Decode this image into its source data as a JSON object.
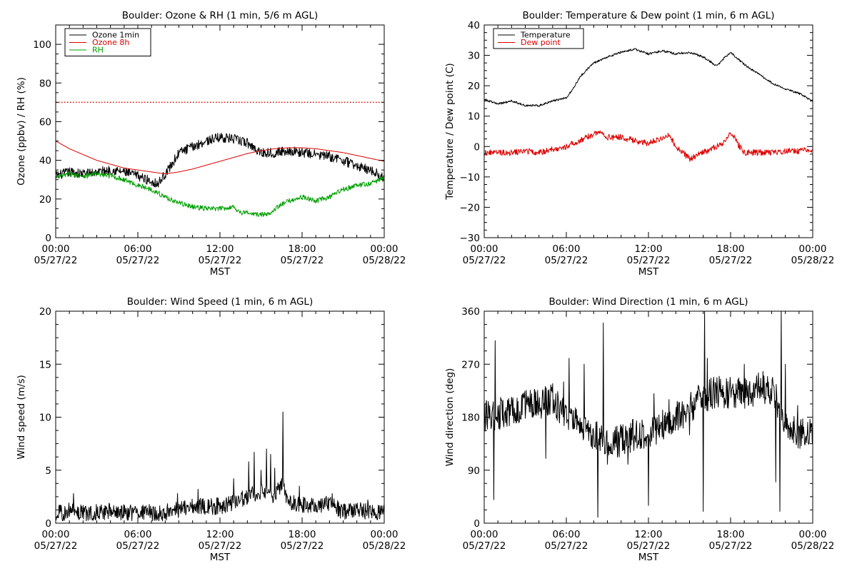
{
  "chart_data": [
    {
      "id": "ozone_rh",
      "type": "line",
      "title": "Boulder: Ozone & RH (1 min, 5/6 m AGL)",
      "xlabel": "MST",
      "ylabel": "Ozone (ppbv) / RH (%)",
      "xlim": [
        0,
        24
      ],
      "ylim": [
        0,
        110
      ],
      "yticks": [
        0,
        20,
        40,
        60,
        80,
        100
      ],
      "ytick_labels": [
        "0",
        "20",
        "40",
        "60",
        "80",
        "100"
      ],
      "xtick_labels": [
        [
          "00:00",
          "05/27/22"
        ],
        [
          "06:00",
          "05/27/22"
        ],
        [
          "12:00",
          "05/27/22"
        ],
        [
          "18:00",
          "05/27/22"
        ],
        [
          "00:00",
          "05/28/22"
        ]
      ],
      "legend": {
        "position": "top-left",
        "boxed": true
      },
      "reference_line": {
        "value": 70,
        "color": "#dd0000",
        "style": "dotted"
      },
      "series": [
        {
          "name": "Ozone 1min",
          "color": "#000000",
          "noise": 2.5,
          "x": [
            0,
            1,
            2,
            3,
            4,
            5,
            6,
            7,
            7.5,
            8,
            8.5,
            9,
            10,
            11,
            12,
            13,
            14,
            15,
            16,
            17,
            18,
            19,
            20,
            21,
            22,
            23,
            24
          ],
          "y": [
            32,
            34,
            33,
            34,
            35,
            34,
            32,
            29,
            28,
            33,
            38,
            44,
            47,
            50,
            52,
            51,
            49,
            44,
            44,
            45,
            44,
            43,
            42,
            40,
            37,
            35,
            31
          ]
        },
        {
          "name": "Ozone 8h",
          "color": "#dd0000",
          "noise": 0,
          "x": [
            0,
            1,
            2,
            3,
            4,
            5,
            6,
            7,
            8,
            9,
            10,
            11,
            12,
            13,
            14,
            15,
            16,
            17,
            18,
            19,
            20,
            21,
            22,
            23,
            24
          ],
          "y": [
            50,
            46,
            43,
            40,
            38,
            36,
            35,
            34,
            33,
            34,
            35.5,
            37.5,
            39.5,
            41.5,
            43.5,
            45,
            46,
            46.5,
            46.5,
            46,
            45,
            44,
            42.5,
            41,
            39.5
          ]
        },
        {
          "name": "RH",
          "color": "#00a000",
          "noise": 1.3,
          "x": [
            0,
            1,
            2,
            3,
            4,
            5,
            6,
            7,
            8,
            9,
            10,
            11,
            12,
            13,
            13.5,
            14,
            14.5,
            15,
            15.5,
            16,
            17,
            18,
            19,
            20,
            21,
            22,
            23,
            24
          ],
          "y": [
            31,
            33,
            32,
            33,
            32,
            30,
            27,
            25,
            21,
            18,
            16,
            15,
            15,
            16,
            13,
            13,
            12,
            12,
            12,
            15,
            19,
            21,
            19,
            21,
            25,
            27,
            28,
            31
          ]
        }
      ]
    },
    {
      "id": "temp_dew",
      "type": "line",
      "title": "Boulder: Temperature & Dew point (1 min, 6 m AGL)",
      "xlabel": "MST",
      "ylabel": "Temperature / Dew point (C)",
      "xlim": [
        0,
        24
      ],
      "ylim": [
        -30,
        40
      ],
      "yticks": [
        -30,
        -20,
        -10,
        0,
        10,
        20,
        30,
        40
      ],
      "ytick_labels": [
        "−30",
        "−20",
        "−10",
        "0",
        "10",
        "20",
        "30",
        "40"
      ],
      "xtick_labels": [
        [
          "00:00",
          "05/27/22"
        ],
        [
          "06:00",
          "05/27/22"
        ],
        [
          "12:00",
          "05/27/22"
        ],
        [
          "18:00",
          "05/27/22"
        ],
        [
          "00:00",
          "05/28/22"
        ]
      ],
      "legend": {
        "position": "top-left",
        "boxed": true
      },
      "series": [
        {
          "name": "Temperature",
          "color": "#000000",
          "noise": 0.35,
          "x": [
            0,
            1,
            2,
            3,
            4,
            5,
            6,
            6.5,
            7,
            8,
            9,
            10,
            11,
            12,
            13,
            14,
            15,
            16,
            17,
            17.5,
            18,
            19,
            20,
            21,
            22,
            23,
            24
          ],
          "y": [
            15.5,
            14,
            15,
            13.5,
            13.5,
            15,
            16,
            19,
            23,
            27.5,
            29.5,
            31,
            32,
            30.5,
            31.5,
            30.5,
            31,
            29.5,
            26.5,
            29,
            31,
            27,
            24,
            21,
            19,
            17.5,
            15
          ]
        },
        {
          "name": "Dew point",
          "color": "#dd0000",
          "noise": 1.0,
          "x": [
            0,
            1,
            2,
            3,
            4,
            5,
            6,
            7,
            8,
            8.5,
            9,
            10,
            11,
            12,
            13,
            13.5,
            14,
            14.5,
            15,
            16,
            17,
            17.5,
            18,
            18.5,
            19,
            20,
            21,
            22,
            23,
            24
          ],
          "y": [
            -2,
            -2,
            -2,
            -1.5,
            -2,
            -1,
            0,
            2,
            4,
            5,
            3,
            3,
            2,
            1,
            3,
            4,
            0,
            -2,
            -4,
            -2,
            0,
            1,
            5,
            1,
            -2,
            -2,
            -2,
            -1.5,
            -1.5,
            -1
          ]
        }
      ]
    },
    {
      "id": "wind_speed",
      "type": "line",
      "title": "Boulder: Wind Speed (1 min, 6 m AGL)",
      "xlabel": "MST",
      "ylabel": "Wind speed (m/s)",
      "xlim": [
        0,
        24
      ],
      "ylim": [
        0,
        20
      ],
      "yticks": [
        0,
        5,
        10,
        15,
        20
      ],
      "ytick_labels": [
        "0",
        "5",
        "10",
        "15",
        "20"
      ],
      "xtick_labels": [
        [
          "00:00",
          "05/27/22"
        ],
        [
          "06:00",
          "05/27/22"
        ],
        [
          "12:00",
          "05/27/22"
        ],
        [
          "18:00",
          "05/27/22"
        ],
        [
          "00:00",
          "05/28/22"
        ]
      ],
      "series": [
        {
          "name": "",
          "color": "#000000",
          "noise": 0.8,
          "min": 0,
          "x": [
            0,
            1,
            2,
            3,
            4,
            5,
            6,
            7,
            8,
            9,
            10,
            11,
            12,
            13,
            14,
            15,
            16,
            16.5,
            17,
            18,
            19,
            20,
            21,
            22,
            23,
            24
          ],
          "y": [
            0.8,
            1.2,
            1.0,
            1.0,
            1.1,
            1.0,
            0.9,
            1.0,
            1.0,
            1.3,
            1.5,
            1.6,
            1.6,
            2.0,
            2.5,
            3.0,
            2.2,
            4.0,
            2.0,
            1.8,
            1.6,
            1.8,
            1.1,
            1.2,
            1.0,
            1.0
          ],
          "spikes": [
            [
              1.3,
              2.8
            ],
            [
              8.9,
              2.8
            ],
            [
              10.4,
              3.2
            ],
            [
              13,
              4.2
            ],
            [
              14.1,
              5.8
            ],
            [
              14.5,
              6.7
            ],
            [
              15.0,
              5.0
            ],
            [
              15.4,
              7.0
            ],
            [
              15.7,
              6.5
            ],
            [
              16.0,
              5.2
            ],
            [
              16.6,
              10.5
            ],
            [
              17.8,
              3.5
            ],
            [
              20.2,
              2.8
            ],
            [
              22.8,
              2.2
            ]
          ]
        }
      ]
    },
    {
      "id": "wind_dir",
      "type": "line",
      "title": "Boulder: Wind Direction (1 min, 6 m AGL)",
      "xlabel": "MST",
      "ylabel": "Wind direction (deg)",
      "xlim": [
        0,
        24
      ],
      "ylim": [
        0,
        360
      ],
      "yticks": [
        0,
        90,
        180,
        270,
        360
      ],
      "ytick_labels": [
        "0",
        "90",
        "180",
        "270",
        "360"
      ],
      "xtick_labels": [
        [
          "00:00",
          "05/27/22"
        ],
        [
          "06:00",
          "05/27/22"
        ],
        [
          "12:00",
          "05/27/22"
        ],
        [
          "18:00",
          "05/27/22"
        ],
        [
          "00:00",
          "05/28/22"
        ]
      ],
      "series": [
        {
          "name": "",
          "color": "#000000",
          "noise": 28,
          "min": 0,
          "max": 360,
          "x": [
            0,
            1,
            2,
            3,
            4,
            5,
            6,
            7,
            8,
            9,
            10,
            11,
            12,
            13,
            14,
            15,
            16,
            17,
            18,
            19,
            20,
            21,
            22,
            23,
            24
          ],
          "y": [
            180,
            185,
            190,
            200,
            200,
            210,
            185,
            160,
            150,
            130,
            140,
            150,
            155,
            165,
            180,
            195,
            215,
            225,
            220,
            220,
            230,
            230,
            170,
            150,
            160
          ],
          "spikes": [
            [
              0.7,
              40
            ],
            [
              0.8,
              310
            ],
            [
              4.5,
              110
            ],
            [
              5.8,
              240
            ],
            [
              6.2,
              280
            ],
            [
              7.3,
              270
            ],
            [
              8.3,
              10
            ],
            [
              8.7,
              340
            ],
            [
              9,
              100
            ],
            [
              10.5,
              100
            ],
            [
              12,
              30
            ],
            [
              12.4,
              220
            ],
            [
              13.5,
              210
            ],
            [
              15,
              150
            ],
            [
              16.0,
              20
            ],
            [
              16.1,
              360
            ],
            [
              16.3,
              280
            ],
            [
              19,
              270
            ],
            [
              20.3,
              230
            ],
            [
              21.3,
              70
            ],
            [
              21.6,
              20
            ],
            [
              21.7,
              360
            ],
            [
              22.0,
              270
            ],
            [
              22.9,
              200
            ]
          ]
        }
      ]
    }
  ]
}
